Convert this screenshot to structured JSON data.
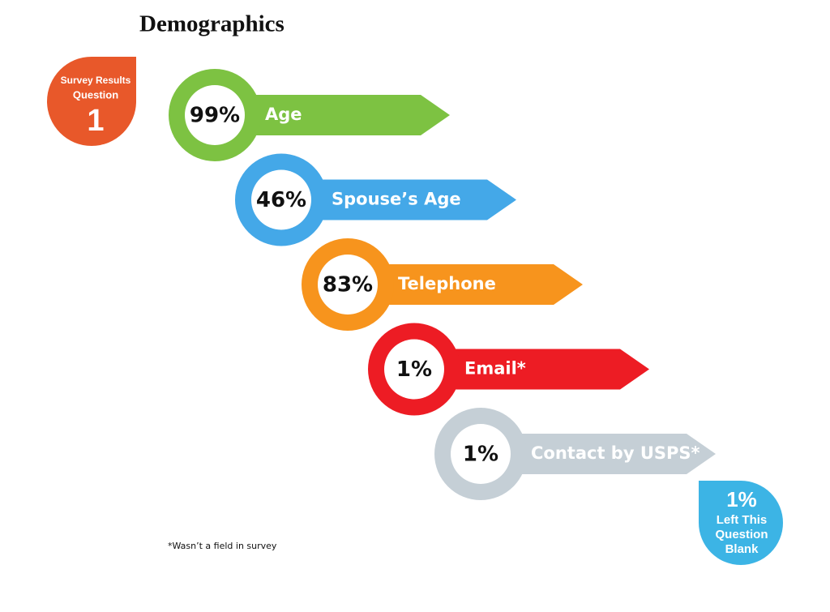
{
  "title": "Demographics",
  "badge": {
    "line1": "Survey Results",
    "line2": "Question",
    "number": "1"
  },
  "items": [
    {
      "percent": "99%",
      "label": "Age",
      "color": "#7dc242"
    },
    {
      "percent": "46%",
      "label": "Spouse’s Age",
      "color": "#44a8e8"
    },
    {
      "percent": "83%",
      "label": "Telephone",
      "color": "#f7941d"
    },
    {
      "percent": "1%",
      "label": "Email*",
      "color": "#ed1c24"
    },
    {
      "percent": "1%",
      "label": "Contact by USPS*",
      "color": "#c5cfd6"
    }
  ],
  "footnote": "*Wasn’t a field in survey",
  "corner_badge": {
    "percent": "1%",
    "lines": [
      "Left This",
      "Question",
      "Blank"
    ]
  }
}
